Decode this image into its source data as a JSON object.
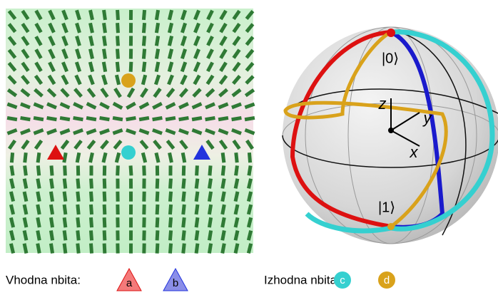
{
  "sphere": {
    "ket0": "|0⟩",
    "ket1": "|1⟩",
    "axis_z": "z",
    "axis_y": "y",
    "axis_x": "x"
  },
  "legend": {
    "input_label": "Vhodna nbita:",
    "input_a": "a",
    "input_b": "b",
    "output_label": "Izhodna nbita:",
    "output_c": "c",
    "output_d": "d"
  }
}
